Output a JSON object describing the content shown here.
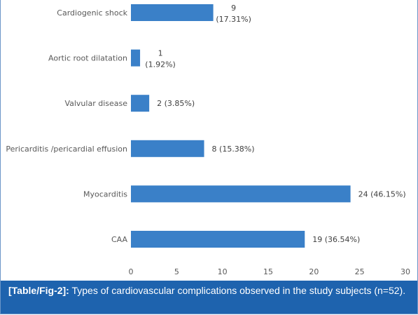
{
  "chart_data": {
    "type": "bar",
    "orientation": "horizontal",
    "categories": [
      "Cardiogenic shock",
      "Aortic root dilatation",
      "Valvular disease",
      "Pericarditis /pericardial effusion",
      "Myocarditis",
      "CAA"
    ],
    "values": [
      9,
      1,
      2,
      8,
      24,
      19
    ],
    "data_labels": [
      [
        "9",
        "(17.31%)"
      ],
      [
        "1",
        "(1.92%)"
      ],
      [
        "2 (3.85%)"
      ],
      [
        "8 (15.38%)"
      ],
      [
        "24 (46.15%)"
      ],
      [
        "19 (36.54%)"
      ]
    ],
    "xticks": [
      "0",
      "5",
      "10",
      "15",
      "20",
      "25",
      "30"
    ],
    "xlim": [
      0,
      30
    ],
    "bar_color": "#3a80c8",
    "grid": false,
    "legend": "none"
  },
  "caption": {
    "ref": "[Table/Fig-2]:",
    "text": " Types of cardiovascular complications observed in the study subjects (n=52).",
    "background": "#1e63ae"
  }
}
